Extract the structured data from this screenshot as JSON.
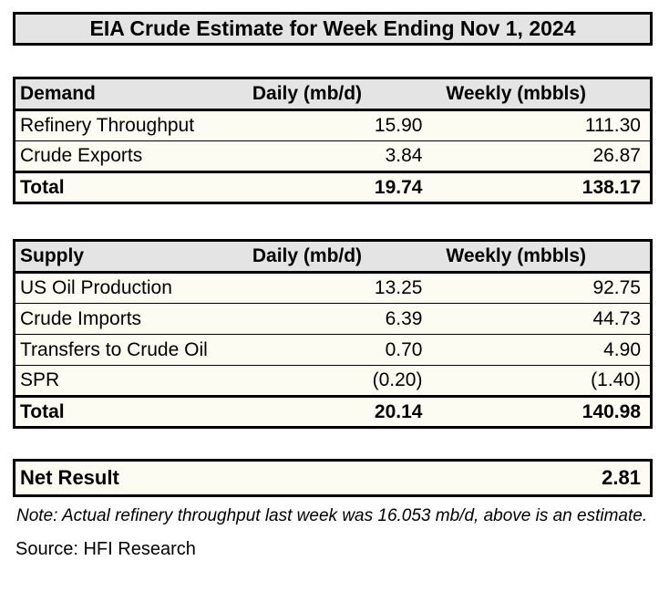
{
  "title": "EIA Crude Estimate for Week Ending Nov 1, 2024",
  "colors": {
    "header_bg": "#E4E4E4",
    "body_bg": "#FDFCF2",
    "border": "#000000",
    "page_bg": "#FFFFFF",
    "text": "#000000"
  },
  "tables": [
    {
      "name": "demand",
      "headers": [
        "Demand",
        "Daily (mb/d)",
        "Weekly (mbbls)"
      ],
      "rows": [
        {
          "label": "Refinery Throughput",
          "daily": "15.90",
          "weekly": "111.30"
        },
        {
          "label": "Crude Exports",
          "daily": "3.84",
          "weekly": "26.87"
        }
      ],
      "total": {
        "label": "Total",
        "daily": "19.74",
        "weekly": "138.17"
      }
    },
    {
      "name": "supply",
      "headers": [
        "Supply",
        "Daily (mb/d)",
        "Weekly (mbbls)"
      ],
      "rows": [
        {
          "label": "US Oil Production",
          "daily": "13.25",
          "weekly": "92.75"
        },
        {
          "label": "Crude Imports",
          "daily": "6.39",
          "weekly": "44.73"
        },
        {
          "label": "Transfers to Crude Oil",
          "daily": "0.70",
          "weekly": "4.90"
        },
        {
          "label": "SPR",
          "daily": "(0.20)",
          "weekly": "(1.40)"
        }
      ],
      "total": {
        "label": "Total",
        "daily": "20.14",
        "weekly": "140.98"
      }
    }
  ],
  "net_result": {
    "label": "Net Result",
    "value": "2.81"
  },
  "note": "Note: Actual refinery throughput last week was 16.053 mb/d, above is an estimate.",
  "source": "Source: HFI Research",
  "chart_data": {
    "type": "table",
    "title": "EIA Crude Estimate for Week Ending Nov 1, 2024",
    "tables": [
      {
        "name": "Demand",
        "columns": [
          "Demand",
          "Daily (mb/d)",
          "Weekly (mbbls)"
        ],
        "rows": [
          [
            "Refinery Throughput",
            15.9,
            111.3
          ],
          [
            "Crude Exports",
            3.84,
            26.87
          ],
          [
            "Total",
            19.74,
            138.17
          ]
        ]
      },
      {
        "name": "Supply",
        "columns": [
          "Supply",
          "Daily (mb/d)",
          "Weekly (mbbls)"
        ],
        "rows": [
          [
            "US Oil Production",
            13.25,
            92.75
          ],
          [
            "Crude Imports",
            6.39,
            44.73
          ],
          [
            "Transfers to Crude Oil",
            0.7,
            4.9
          ],
          [
            "SPR",
            -0.2,
            -1.4
          ],
          [
            "Total",
            20.14,
            140.98
          ]
        ]
      },
      {
        "name": "Net Result",
        "columns": [
          "Net Result",
          "Weekly (mbbls)"
        ],
        "rows": [
          [
            "Net Result",
            2.81
          ]
        ]
      }
    ],
    "note": "Note: Actual refinery throughput last week was 16.053 mb/d, above is an estimate.",
    "source": "Source: HFI Research"
  }
}
